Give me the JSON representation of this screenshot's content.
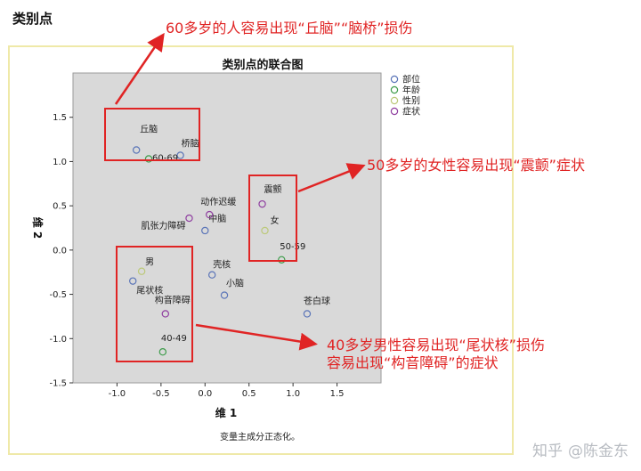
{
  "page": {
    "heading": "类别点",
    "footnote": "变量主成分正态化。"
  },
  "watermark": {
    "platform": "知乎",
    "author": "@陈金东"
  },
  "colors": {
    "部位": "#5b75b8",
    "年龄": "#3d9c4a",
    "性别": "#bcc97a",
    "症状": "#8f3ea0",
    "annotation": "#e02424",
    "plot_bg": "#d9d9d9",
    "frame": "#efe9a8"
  },
  "chart_data": {
    "type": "scatter",
    "title": "类别点的联合图",
    "xlabel": "维 1",
    "ylabel": "维 2",
    "xlim": [
      -1.5,
      2.0
    ],
    "ylim": [
      -1.5,
      2.0
    ],
    "xticks": [
      -1.0,
      -0.5,
      0.0,
      0.5,
      1.0,
      1.5
    ],
    "yticks": [
      -1.5,
      -1.0,
      -0.5,
      0.0,
      0.5,
      1.0,
      1.5
    ],
    "grid": false,
    "legend_position": "top-right",
    "series": [
      {
        "name": "部位",
        "points": [
          {
            "label": "丘脑",
            "x": -0.78,
            "y": 1.13
          },
          {
            "label": "桥脑",
            "x": -0.28,
            "y": 1.07
          },
          {
            "label": "中脑",
            "x": 0.0,
            "y": 0.22
          },
          {
            "label": "壳核",
            "x": 0.08,
            "y": -0.28
          },
          {
            "label": "小脑",
            "x": 0.22,
            "y": -0.51
          },
          {
            "label": "尾状核",
            "x": -0.82,
            "y": -0.35
          },
          {
            "label": "苍白球",
            "x": 1.16,
            "y": -0.72
          }
        ]
      },
      {
        "name": "年龄",
        "points": [
          {
            "label": "60-69",
            "x": -0.64,
            "y": 1.03
          },
          {
            "label": "50-59",
            "x": 0.87,
            "y": -0.11
          },
          {
            "label": "40-49",
            "x": -0.48,
            "y": -1.15
          }
        ]
      },
      {
        "name": "性别",
        "points": [
          {
            "label": "女",
            "x": 0.68,
            "y": 0.22
          },
          {
            "label": "男",
            "x": -0.72,
            "y": -0.24
          }
        ]
      },
      {
        "name": "症状",
        "points": [
          {
            "label": "动作迟缓",
            "x": 0.05,
            "y": 0.4
          },
          {
            "label": "肌张力障碍",
            "x": -0.18,
            "y": 0.36
          },
          {
            "label": "震颤",
            "x": 0.65,
            "y": 0.52
          },
          {
            "label": "构音障碍",
            "x": -0.45,
            "y": -0.72
          }
        ]
      }
    ],
    "annotations": [
      {
        "lines": [
          "60多岁的人容易出现“丘脑”“脑桥”损伤"
        ]
      },
      {
        "lines": [
          "50多岁的女性容易出现“震颤”症状"
        ]
      },
      {
        "lines": [
          "40多岁男性容易出现“尾状核”损伤",
          "容易出现“构音障碍”的症状"
        ]
      }
    ]
  }
}
